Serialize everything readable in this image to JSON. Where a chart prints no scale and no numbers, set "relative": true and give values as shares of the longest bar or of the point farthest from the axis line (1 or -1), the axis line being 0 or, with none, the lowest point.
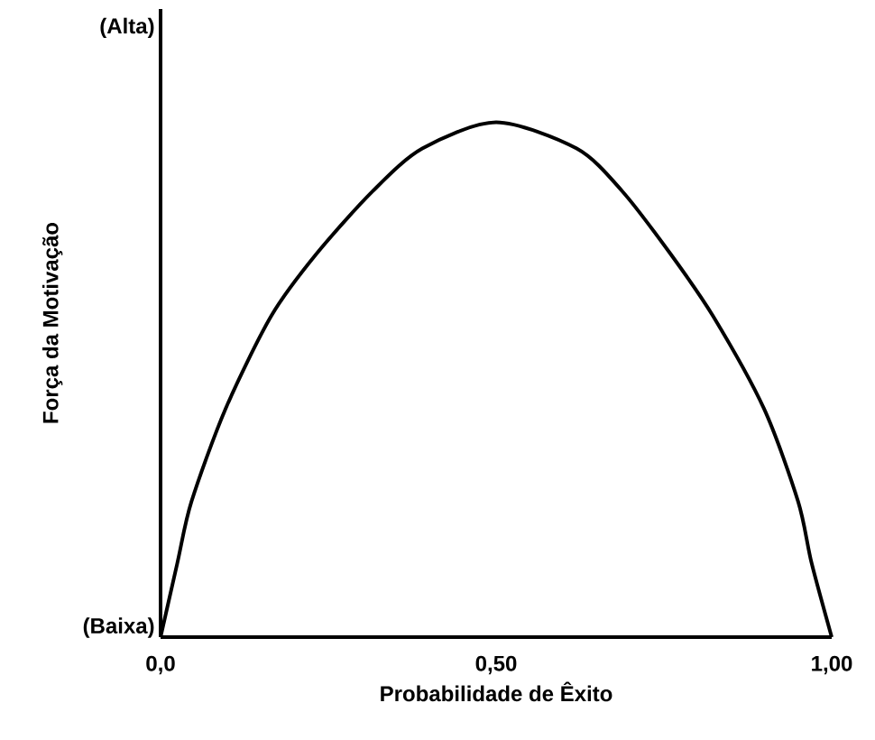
{
  "chart_data": {
    "type": "line",
    "xlabel": "Probabilidade de Êxito",
    "ylabel": "Força da Motivação",
    "x": [
      0,
      0.025,
      0.046,
      0.097,
      0.165,
      0.232,
      0.316,
      0.39,
      0.5,
      0.62,
      0.688,
      0.76,
      0.823,
      0.899,
      0.95,
      0.97,
      1.0
    ],
    "values": [
      0,
      0.144,
      0.263,
      0.444,
      0.624,
      0.744,
      0.866,
      0.949,
      1,
      0.949,
      0.866,
      0.744,
      0.624,
      0.444,
      0.263,
      0.144,
      0
    ],
    "relative": true,
    "color": "#000000",
    "xlim": [
      0,
      1
    ],
    "xticks": [
      {
        "value": 0,
        "label": "0,0"
      },
      {
        "value": 0.5,
        "label": "0,50"
      },
      {
        "value": 1,
        "label": "1,00"
      }
    ],
    "annotations": [
      "(Alta)",
      "(Baixa)"
    ]
  }
}
